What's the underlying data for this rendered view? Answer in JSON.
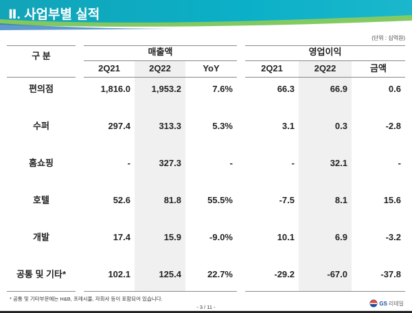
{
  "header": {
    "title": "Ⅱ. 사업부별 실적"
  },
  "unit": "(단위 : 십억원)",
  "table": {
    "label_header": "구 분",
    "groups": [
      {
        "label": "매출액",
        "columns": [
          "2Q21",
          "2Q22",
          "YoY"
        ]
      },
      {
        "label": "영업이익",
        "columns": [
          "2Q21",
          "2Q22",
          "금액"
        ]
      }
    ],
    "rows": [
      {
        "label": "편의점",
        "values": [
          "1,816.0",
          "1,953.2",
          "7.6%",
          "66.3",
          "66.9",
          "0.6"
        ]
      },
      {
        "label": "수퍼",
        "values": [
          "297.4",
          "313.3",
          "5.3%",
          "3.1",
          "0.3",
          "-2.8"
        ]
      },
      {
        "label": "홈쇼핑",
        "values": [
          "-",
          "327.3",
          "-",
          "-",
          "32.1",
          "-"
        ]
      },
      {
        "label": "호텔",
        "values": [
          "52.6",
          "81.8",
          "55.5%",
          "-7.5",
          "8.1",
          "15.6"
        ]
      },
      {
        "label": "개발",
        "values": [
          "17.4",
          "15.9",
          "-9.0%",
          "10.1",
          "6.9",
          "-3.2"
        ]
      },
      {
        "label": "공통 및 기타*",
        "values": [
          "102.1",
          "125.4",
          "22.7%",
          "-29.2",
          "-67.0",
          "-37.8"
        ]
      }
    ]
  },
  "footnote": "* 공통 및 기타부문에는 H&B, 프레시몰, 자회사 등이 포함되어 있습니다.",
  "page": "- 3 / 11 -",
  "logo": {
    "brand": "GS",
    "sub": "리테일"
  },
  "colors": {
    "band": "#0bb0c8",
    "shade": "#f0f0f0"
  }
}
